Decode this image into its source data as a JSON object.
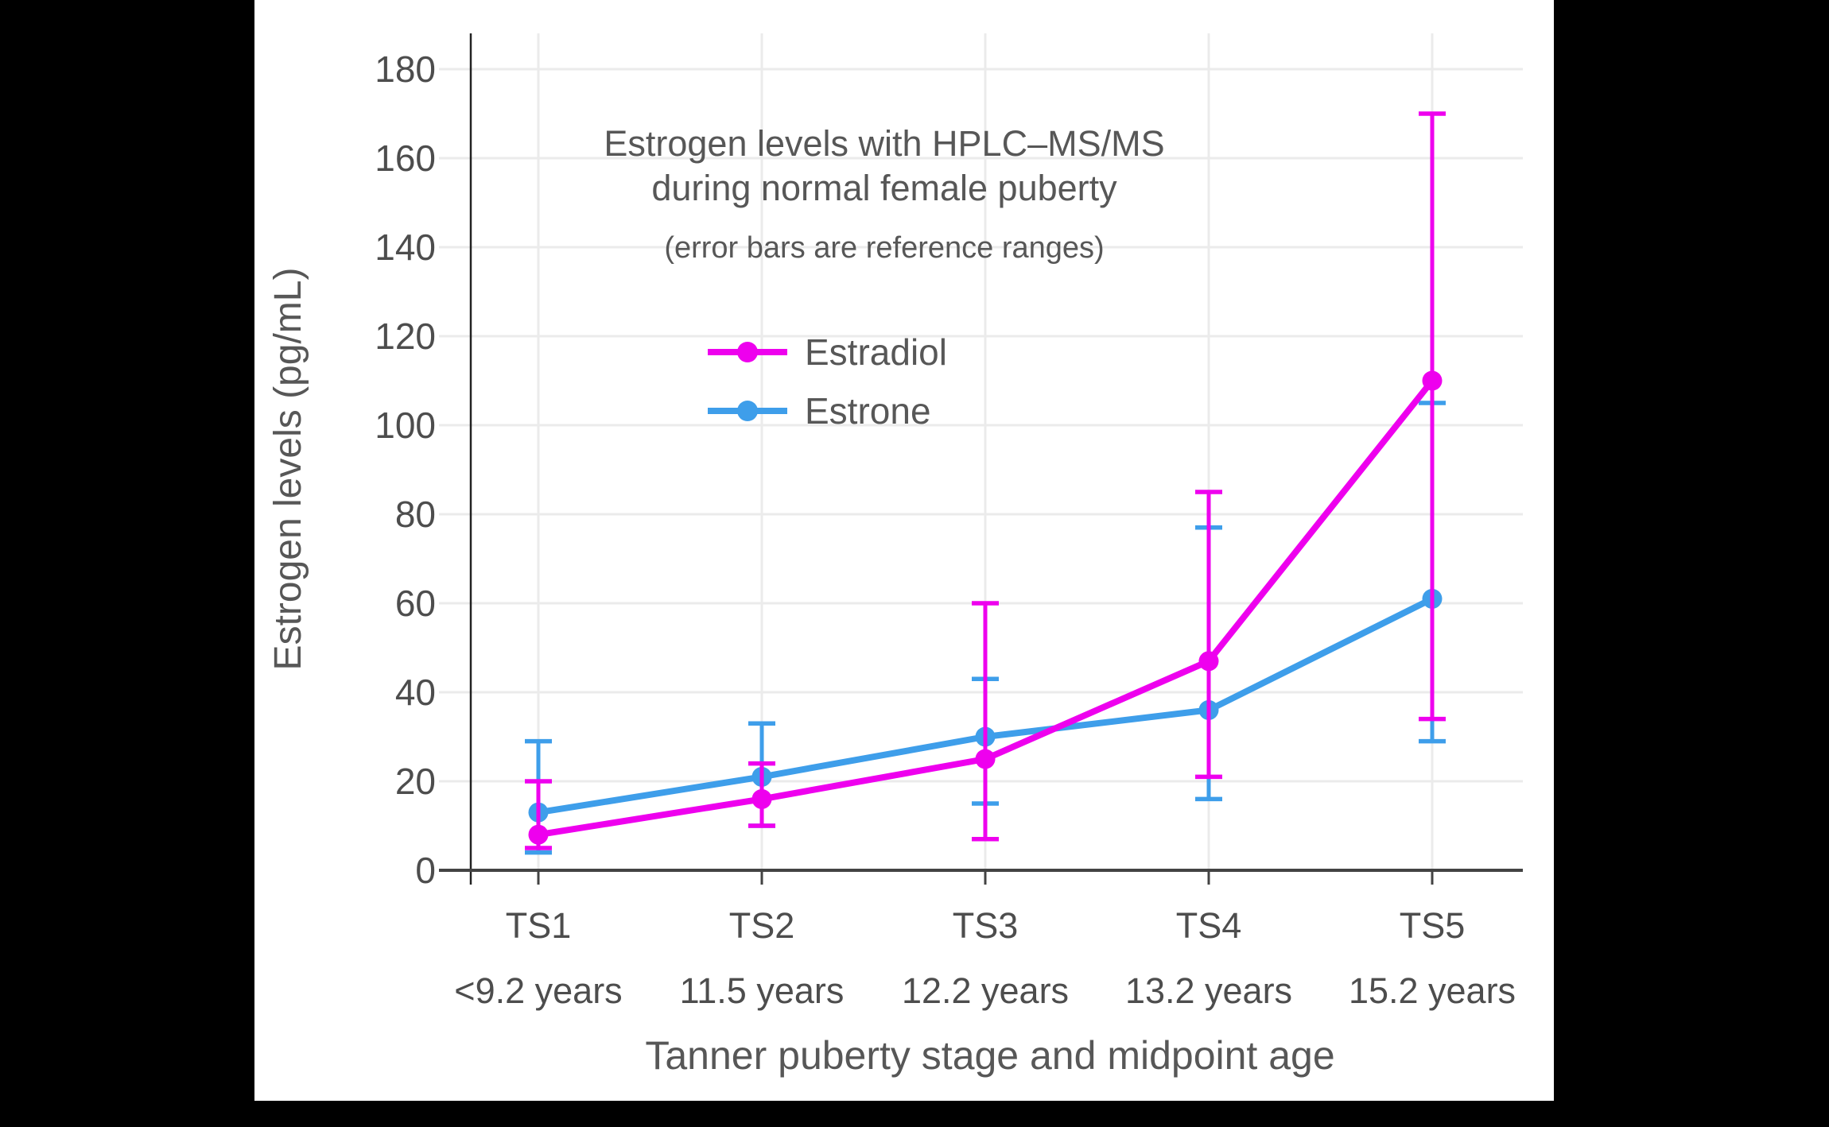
{
  "page": {
    "background": "#000000",
    "panel_background": "#FFFFFF"
  },
  "colors": {
    "estradiol": "#EE00EE",
    "estrone": "#3E9EEA",
    "grid": "#EBEBEB",
    "axis": "#434343",
    "axis_y": "#222222",
    "tick_text": "#4D4D4D",
    "title_text": "#575757"
  },
  "chart": {
    "title_line1": "Estrogen levels with HPLC–MS/MS",
    "title_line2": "during normal female puberty",
    "subtitle": "(error bars are reference ranges)",
    "y_axis_title": "Estrogen levels (pg/mL)",
    "x_axis_title": "Tanner puberty stage and midpoint age"
  },
  "chart_data": {
    "type": "line",
    "title": "Estrogen levels with HPLC–MS/MS during normal female puberty",
    "subtitle": "(error bars are reference ranges)",
    "xlabel": "Tanner puberty stage and midpoint age",
    "ylabel": "Estrogen levels (pg/mL)",
    "categories": [
      "TS1",
      "TS2",
      "TS3",
      "TS4",
      "TS5"
    ],
    "category_sublabels": [
      "<9.2 years",
      "11.5 years",
      "12.2 years",
      "13.2 years",
      "15.2 years"
    ],
    "y_ticks": [
      0,
      20,
      40,
      60,
      80,
      100,
      120,
      140,
      160,
      180
    ],
    "ylim": [
      0,
      188
    ],
    "grid": true,
    "legend_position": "inside-upper-center",
    "error_bar_meaning": "reference ranges",
    "series": [
      {
        "name": "Estradiol",
        "color": "#EE00EE",
        "values": [
          8,
          16,
          25,
          47,
          110
        ],
        "error_low": [
          5,
          10,
          7,
          21,
          34
        ],
        "error_high": [
          20,
          24,
          60,
          85,
          170
        ]
      },
      {
        "name": "Estrone",
        "color": "#3E9EEA",
        "values": [
          13,
          21,
          30,
          36,
          61
        ],
        "error_low": [
          4,
          10,
          15,
          16,
          29
        ],
        "error_high": [
          29,
          33,
          43,
          77,
          105
        ]
      }
    ]
  }
}
